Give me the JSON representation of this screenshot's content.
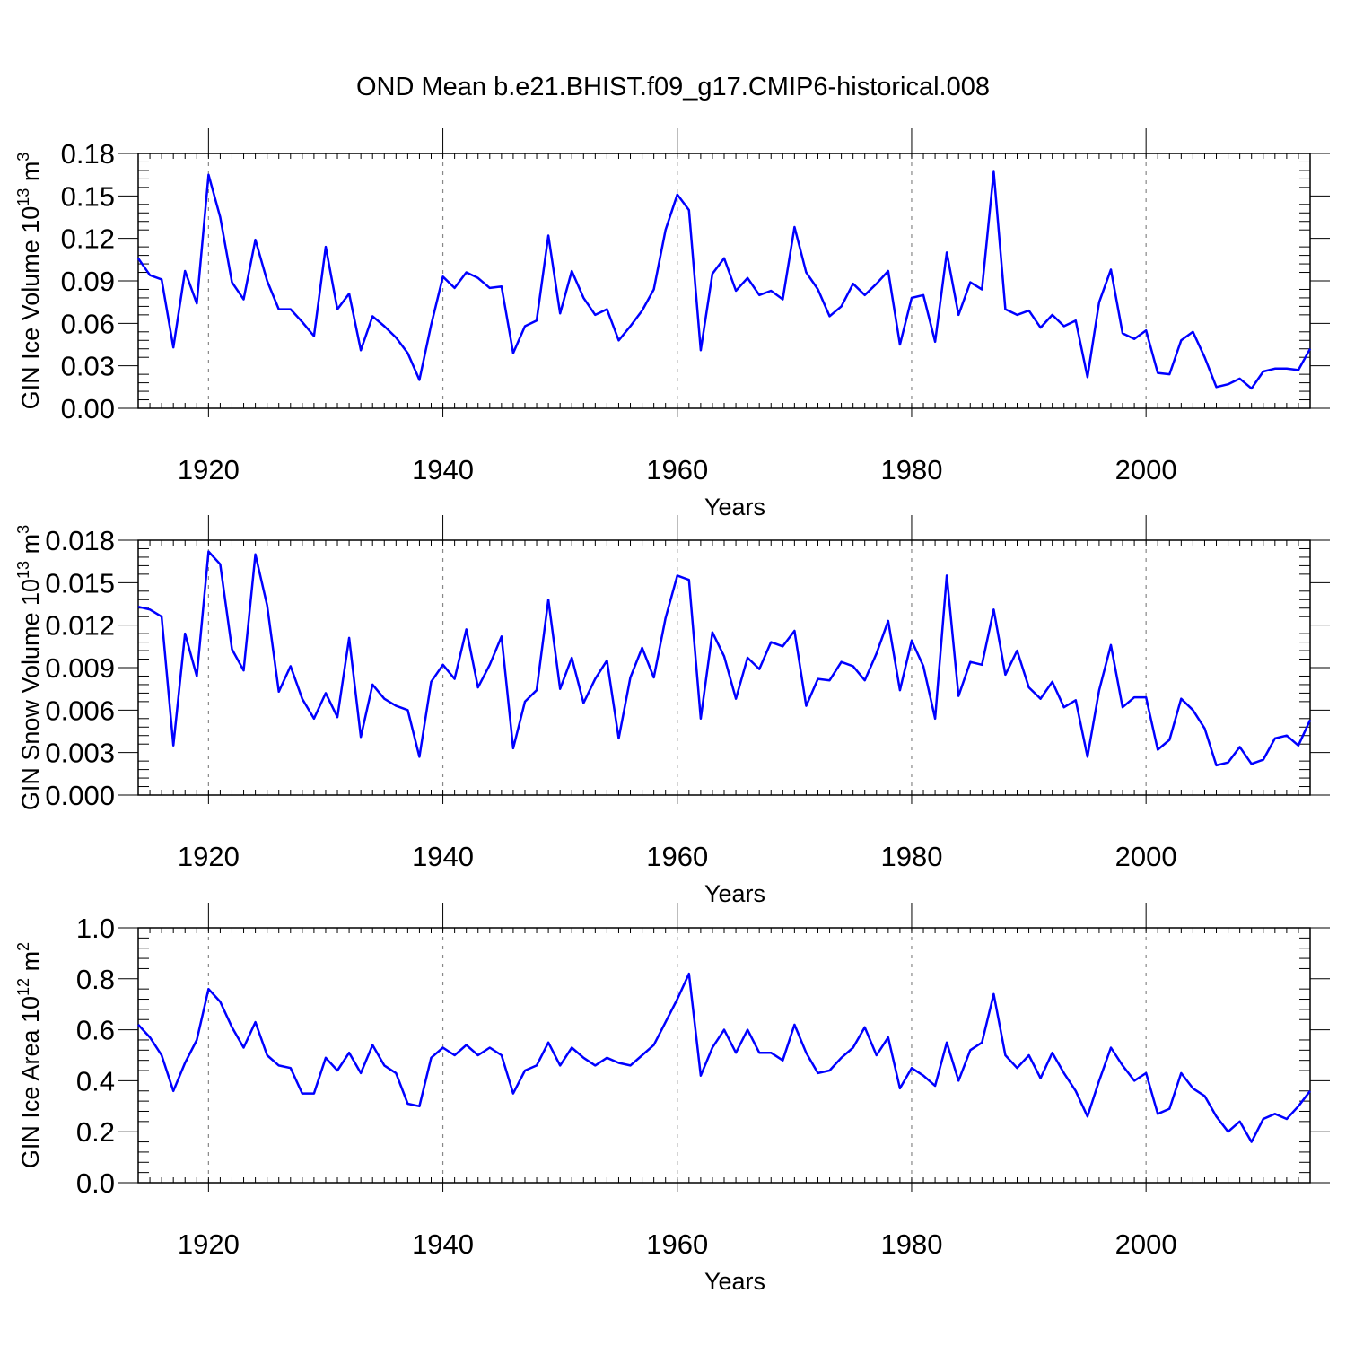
{
  "title": "OND Mean b.e21.BHIST.f09_g17.CMIP6-historical.008",
  "chart_data": [
    {
      "type": "line",
      "ylabel": "GIN Ice Volume 10",
      "ylabel_sup": "13",
      "ylabel_unit": " m",
      "ylabel_unit_sup": "3",
      "xlabel": "Years",
      "xlim": [
        1914,
        2014
      ],
      "ylim": [
        0,
        0.18
      ],
      "yticks": [
        0.0,
        0.03,
        0.06,
        0.09,
        0.12,
        0.15,
        0.18
      ],
      "ytick_labels": [
        "0.00",
        "0.03",
        "0.06",
        "0.09",
        "0.12",
        "0.15",
        "0.18"
      ],
      "xticks": [
        1920,
        1940,
        1960,
        1980,
        2000
      ],
      "xtick_labels": [
        "1920",
        "1940",
        "1960",
        "1980",
        "2000"
      ],
      "x_start": 1914,
      "values": [
        0.106,
        0.094,
        0.091,
        0.043,
        0.097,
        0.074,
        0.165,
        0.135,
        0.089,
        0.077,
        0.119,
        0.09,
        0.07,
        0.07,
        0.061,
        0.051,
        0.114,
        0.07,
        0.081,
        0.041,
        0.065,
        0.058,
        0.05,
        0.039,
        0.02,
        0.059,
        0.093,
        0.085,
        0.096,
        0.092,
        0.085,
        0.086,
        0.039,
        0.058,
        0.062,
        0.122,
        0.067,
        0.097,
        0.078,
        0.066,
        0.07,
        0.048,
        0.058,
        0.069,
        0.084,
        0.126,
        0.151,
        0.14,
        0.041,
        0.095,
        0.106,
        0.083,
        0.092,
        0.08,
        0.083,
        0.077,
        0.128,
        0.096,
        0.084,
        0.065,
        0.072,
        0.088,
        0.08,
        0.088,
        0.097,
        0.045,
        0.078,
        0.08,
        0.047,
        0.11,
        0.066,
        0.089,
        0.084,
        0.167,
        0.07,
        0.066,
        0.069,
        0.057,
        0.066,
        0.058,
        0.062,
        0.022,
        0.075,
        0.098,
        0.053,
        0.049,
        0.055,
        0.025,
        0.024,
        0.048,
        0.054,
        0.036,
        0.015,
        0.017,
        0.021,
        0.014,
        0.026,
        0.028,
        0.028,
        0.027,
        0.042
      ]
    },
    {
      "type": "line",
      "ylabel": "GIN Snow Volume 10",
      "ylabel_sup": "13",
      "ylabel_unit": " m",
      "ylabel_unit_sup": "3",
      "xlabel": "Years",
      "xlim": [
        1914,
        2014
      ],
      "ylim": [
        0,
        0.018
      ],
      "yticks": [
        0.0,
        0.003,
        0.006,
        0.009,
        0.012,
        0.015,
        0.018
      ],
      "ytick_labels": [
        "0.000",
        "0.003",
        "0.006",
        "0.009",
        "0.012",
        "0.015",
        "0.018"
      ],
      "xticks": [
        1920,
        1940,
        1960,
        1980,
        2000
      ],
      "xtick_labels": [
        "1920",
        "1940",
        "1960",
        "1980",
        "2000"
      ],
      "x_start": 1914,
      "values": [
        0.0133,
        0.0131,
        0.0126,
        0.0035,
        0.0114,
        0.0084,
        0.0172,
        0.0163,
        0.0103,
        0.0088,
        0.017,
        0.0134,
        0.0073,
        0.0091,
        0.0068,
        0.0054,
        0.0072,
        0.0055,
        0.0111,
        0.0041,
        0.0078,
        0.0068,
        0.0063,
        0.006,
        0.0027,
        0.008,
        0.0092,
        0.0082,
        0.0117,
        0.0076,
        0.0092,
        0.0112,
        0.0033,
        0.0066,
        0.0074,
        0.0138,
        0.0075,
        0.0097,
        0.0065,
        0.0082,
        0.0095,
        0.004,
        0.0083,
        0.0104,
        0.0083,
        0.0125,
        0.0155,
        0.0152,
        0.0054,
        0.0115,
        0.0098,
        0.0068,
        0.0097,
        0.0089,
        0.0108,
        0.0105,
        0.0116,
        0.0063,
        0.0082,
        0.0081,
        0.0094,
        0.0091,
        0.0081,
        0.01,
        0.0123,
        0.0074,
        0.0109,
        0.0091,
        0.0054,
        0.0155,
        0.007,
        0.0094,
        0.0092,
        0.0131,
        0.0085,
        0.0102,
        0.0076,
        0.0068,
        0.008,
        0.0062,
        0.0067,
        0.0027,
        0.0074,
        0.0106,
        0.0062,
        0.0069,
        0.0069,
        0.0032,
        0.0039,
        0.0068,
        0.006,
        0.0047,
        0.0021,
        0.0023,
        0.0034,
        0.0022,
        0.0025,
        0.004,
        0.0042,
        0.0035,
        0.0053
      ]
    },
    {
      "type": "line",
      "ylabel": "GIN Ice Area 10",
      "ylabel_sup": "12",
      "ylabel_unit": " m",
      "ylabel_unit_sup": "2",
      "xlabel": "Years",
      "xlim": [
        1914,
        2014
      ],
      "ylim": [
        0,
        1.0
      ],
      "yticks": [
        0.0,
        0.2,
        0.4,
        0.6,
        0.8,
        1.0
      ],
      "ytick_labels": [
        "0.0",
        "0.2",
        "0.4",
        "0.6",
        "0.8",
        "1.0"
      ],
      "xticks": [
        1920,
        1940,
        1960,
        1980,
        2000
      ],
      "xtick_labels": [
        "1920",
        "1940",
        "1960",
        "1980",
        "2000"
      ],
      "x_start": 1914,
      "values": [
        0.62,
        0.57,
        0.5,
        0.36,
        0.47,
        0.56,
        0.76,
        0.71,
        0.61,
        0.53,
        0.63,
        0.5,
        0.46,
        0.45,
        0.35,
        0.35,
        0.49,
        0.44,
        0.51,
        0.43,
        0.54,
        0.46,
        0.43,
        0.31,
        0.3,
        0.49,
        0.53,
        0.5,
        0.54,
        0.5,
        0.53,
        0.5,
        0.35,
        0.44,
        0.46,
        0.55,
        0.46,
        0.53,
        0.49,
        0.46,
        0.49,
        0.47,
        0.46,
        0.5,
        0.54,
        0.63,
        0.72,
        0.82,
        0.42,
        0.53,
        0.6,
        0.51,
        0.6,
        0.51,
        0.51,
        0.48,
        0.62,
        0.51,
        0.43,
        0.44,
        0.49,
        0.53,
        0.61,
        0.5,
        0.57,
        0.37,
        0.45,
        0.42,
        0.38,
        0.55,
        0.4,
        0.52,
        0.55,
        0.74,
        0.5,
        0.45,
        0.5,
        0.41,
        0.51,
        0.43,
        0.36,
        0.26,
        0.4,
        0.53,
        0.46,
        0.4,
        0.43,
        0.27,
        0.29,
        0.43,
        0.37,
        0.34,
        0.26,
        0.2,
        0.24,
        0.16,
        0.25,
        0.27,
        0.25,
        0.3,
        0.36
      ]
    }
  ]
}
